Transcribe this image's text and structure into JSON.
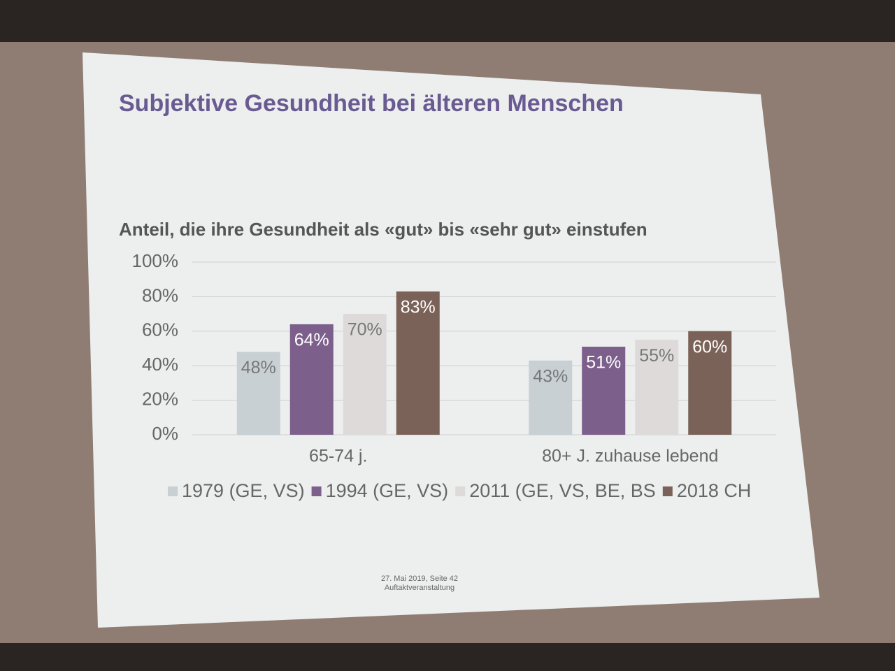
{
  "chart_data": {
    "type": "bar",
    "title": "Subjektive Gesundheit bei älteren Menschen",
    "subtitle": "Anteil, die ihre Gesundheit als  «gut» bis «sehr gut» einstufen",
    "categories": [
      "65-74 j.",
      "80+ J. zuhause lebend"
    ],
    "series": [
      {
        "name": "1979 (GE, VS)",
        "color": "#c8d0d3",
        "values": [
          48,
          43
        ],
        "value_labels": [
          "48%",
          "43%"
        ]
      },
      {
        "name": "1994 (GE, VS)",
        "color": "#7c5f8b",
        "values": [
          64,
          51
        ],
        "value_labels": [
          "64%",
          "51%"
        ]
      },
      {
        "name": "2011 (GE, VS, BE, BS",
        "color": "#dedada",
        "values": [
          70,
          55
        ],
        "value_labels": [
          "70%",
          "55%"
        ]
      },
      {
        "name": "2018 CH",
        "color": "#7a6258",
        "values": [
          83,
          60
        ],
        "value_labels": [
          "83%",
          "60%"
        ]
      }
    ],
    "ylim": [
      0,
      100
    ],
    "yticks": [
      {
        "value": 0,
        "label": "0%"
      },
      {
        "value": 20,
        "label": "20%"
      },
      {
        "value": 40,
        "label": "40%"
      },
      {
        "value": 60,
        "label": "60%"
      },
      {
        "value": 80,
        "label": "80%"
      },
      {
        "value": 100,
        "label": "100%"
      }
    ],
    "grid": true
  },
  "footer": {
    "date": "27. Mai 2019, Seite 42",
    "event": "Auftaktveranstaltung"
  }
}
